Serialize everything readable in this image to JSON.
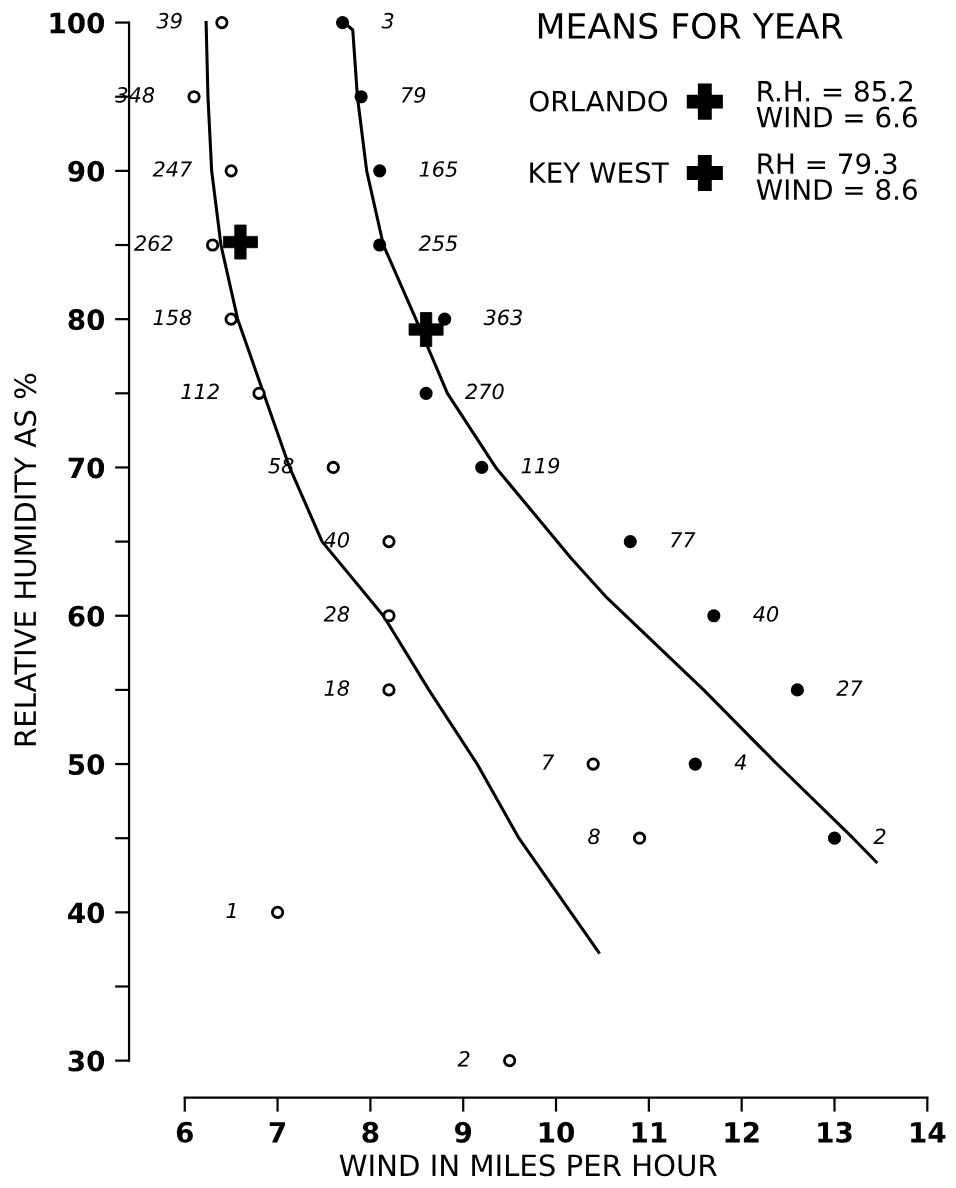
{
  "chart_data": {
    "type": "scatter",
    "xlabel": "WIND IN MILES PER HOUR",
    "ylabel": "RELATIVE HUMIDITY AS %",
    "legend_title": "MEANS FOR YEAR",
    "legend": "top right",
    "xlim": [
      5.4,
      14
    ],
    "ylim": [
      27.5,
      100
    ],
    "xticks": [
      6,
      7,
      8,
      9,
      10,
      11,
      12,
      13,
      14
    ],
    "yticks": [
      30,
      {
        "value": 35,
        "label": null
      },
      40,
      {
        "value": 45,
        "label": null
      },
      50,
      {
        "value": 55,
        "label": null
      },
      60,
      {
        "value": 65,
        "label": null
      },
      70,
      {
        "value": 75,
        "label": null
      },
      80,
      {
        "value": 85,
        "label": null
      },
      90,
      {
        "value": 95,
        "label": null
      },
      100
    ],
    "grid": false,
    "series": [
      {
        "marker": "circle",
        "color": "#ffffff",
        "x": [
          6.4,
          6.1,
          6.5,
          6.3,
          6.5,
          6.8,
          7.6,
          8.2,
          8.2,
          8.2,
          10.4,
          10.9,
          7.0,
          9.5
        ],
        "values": [
          100,
          95,
          90,
          85,
          80,
          75,
          70,
          65,
          60,
          55,
          50,
          45,
          40,
          30
        ]
      },
      {
        "marker": "circle",
        "color": "#000000",
        "x": [
          7.7,
          7.9,
          8.1,
          8.1,
          8.8,
          8.6,
          9.2,
          10.8,
          11.7,
          12.6,
          11.5,
          13.0
        ],
        "values": [
          100,
          95,
          90,
          85,
          80,
          75,
          70,
          65,
          60,
          55,
          50,
          45
        ]
      },
      {
        "type": "line",
        "color": "#000000",
        "x": [
          6.23,
          6.25,
          6.29,
          6.39,
          6.57,
          7.13,
          7.48,
          8.14,
          8.63,
          9.15,
          9.6,
          10.46
        ],
        "values": [
          100,
          95,
          90,
          85,
          80,
          70,
          65,
          60,
          55,
          50,
          45,
          37.3
        ]
      },
      {
        "type": "line",
        "color": "#000000",
        "x": [
          7.72,
          7.81,
          7.86,
          7.96,
          8.14,
          8.49,
          8.83,
          9.35,
          10.16,
          10.55,
          11.59,
          12.38,
          13.2,
          13.45
        ],
        "values": [
          100,
          99.5,
          95,
          90,
          85,
          80,
          75,
          70,
          63.9,
          61.2,
          55,
          50,
          45,
          43.4
        ]
      },
      {
        "name": "ORLANDO",
        "marker": "cross",
        "color": "#000000",
        "x": [
          6.6
        ],
        "values": [
          85.2
        ]
      },
      {
        "name": "KEY WEST",
        "marker": "cross",
        "color": "#000000",
        "x": [
          8.6
        ],
        "values": [
          79.3
        ]
      }
    ],
    "annotations": [
      "R.H. = 85.2\nWIND = 6.6",
      "RH = 79.3\nWIND = 8.6",
      {
        "text": "39",
        "x": 6.4,
        "y": 100
      },
      {
        "text": "348",
        "x": 6.1,
        "y": 95
      },
      {
        "text": "247",
        "x": 6.5,
        "y": 90
      },
      {
        "text": "262",
        "x": 6.3,
        "y": 85
      },
      {
        "text": "158",
        "x": 6.5,
        "y": 80
      },
      {
        "text": "112",
        "x": 6.8,
        "y": 75
      },
      {
        "text": "58",
        "x": 7.6,
        "y": 70
      },
      {
        "text": "40",
        "x": 8.2,
        "y": 65
      },
      {
        "text": "28",
        "x": 8.2,
        "y": 60
      },
      {
        "text": "18",
        "x": 8.2,
        "y": 55
      },
      {
        "text": "7",
        "x": 10.4,
        "y": 50
      },
      {
        "text": "8",
        "x": 10.9,
        "y": 45
      },
      {
        "text": "1",
        "x": 7.0,
        "y": 40
      },
      {
        "text": "2",
        "x": 9.5,
        "y": 30
      },
      {
        "text": "3",
        "x": 7.7,
        "y": 100
      },
      {
        "text": "79",
        "x": 7.9,
        "y": 95
      },
      {
        "text": "165",
        "x": 8.1,
        "y": 90
      },
      {
        "text": "255",
        "x": 8.1,
        "y": 85
      },
      {
        "text": "363",
        "x": 8.8,
        "y": 80
      },
      {
        "text": "270",
        "x": 8.6,
        "y": 75
      },
      {
        "text": "119",
        "x": 9.2,
        "y": 70
      },
      {
        "text": "77",
        "x": 10.8,
        "y": 65
      },
      {
        "text": "40",
        "x": 11.7,
        "y": 60
      },
      {
        "text": "27",
        "x": 12.6,
        "y": 55
      },
      {
        "text": "4",
        "x": 11.5,
        "y": 50
      },
      {
        "text": "2",
        "x": 13.0,
        "y": 45
      }
    ]
  }
}
